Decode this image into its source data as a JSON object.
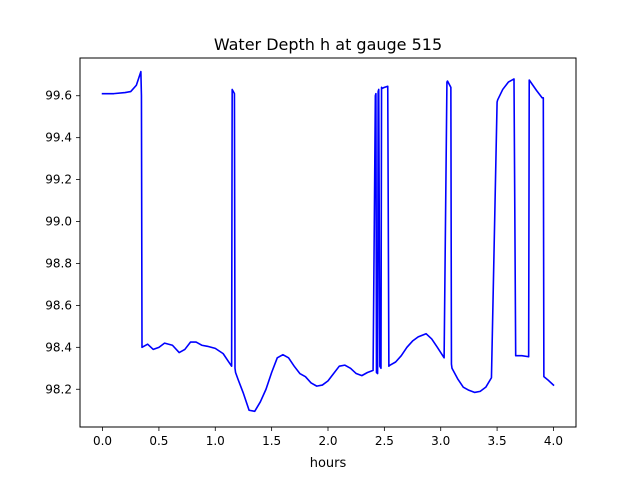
{
  "chart_data": {
    "type": "line",
    "title": "Water Depth h at gauge 515",
    "xlabel": "hours",
    "ylabel": "",
    "xlim": [
      -0.2,
      4.2
    ],
    "ylim": [
      98.02,
      99.78
    ],
    "xticks": [
      0.0,
      0.5,
      1.0,
      1.5,
      2.0,
      2.5,
      3.0,
      3.5,
      4.0
    ],
    "xtick_labels": [
      "0.0",
      "0.5",
      "1.0",
      "1.5",
      "2.0",
      "2.5",
      "3.0",
      "3.5",
      "4.0"
    ],
    "yticks": [
      98.2,
      98.4,
      98.6,
      98.8,
      99.0,
      99.2,
      99.4,
      99.6
    ],
    "ytick_labels": [
      "98.2",
      "98.4",
      "98.6",
      "98.8",
      "99.0",
      "99.2",
      "99.4",
      "99.6"
    ],
    "grid": false,
    "series": [
      {
        "color": "#0000ff",
        "x": [
          0.0,
          0.1,
          0.2,
          0.25,
          0.3,
          0.34,
          0.345,
          0.35,
          0.4,
          0.45,
          0.5,
          0.55,
          0.62,
          0.68,
          0.73,
          0.78,
          0.83,
          0.88,
          0.93,
          1.0,
          1.07,
          1.12,
          1.145,
          1.15,
          1.155,
          1.17,
          1.175,
          1.18,
          1.2,
          1.25,
          1.3,
          1.35,
          1.4,
          1.45,
          1.5,
          1.55,
          1.6,
          1.65,
          1.7,
          1.75,
          1.8,
          1.85,
          1.9,
          1.95,
          2.0,
          2.05,
          2.1,
          2.15,
          2.2,
          2.25,
          2.3,
          2.35,
          2.4,
          2.42,
          2.425,
          2.43,
          2.44,
          2.445,
          2.45,
          2.46,
          2.47,
          2.475,
          2.48,
          2.5,
          2.53,
          2.54,
          2.55,
          2.6,
          2.65,
          2.7,
          2.75,
          2.8,
          2.87,
          2.92,
          2.97,
          3.03,
          3.055,
          3.06,
          3.09,
          3.095,
          3.1,
          3.15,
          3.2,
          3.25,
          3.3,
          3.35,
          3.4,
          3.45,
          3.5,
          3.505,
          3.55,
          3.6,
          3.65,
          3.665,
          3.67,
          3.72,
          3.78,
          3.785,
          3.85,
          3.9,
          3.91,
          3.915,
          3.95,
          4.0
        ],
        "y": [
          99.61,
          99.61,
          99.615,
          99.62,
          99.65,
          99.715,
          99.6,
          98.4,
          98.415,
          98.39,
          98.4,
          98.42,
          98.41,
          98.375,
          98.39,
          98.425,
          98.425,
          98.41,
          98.405,
          98.395,
          98.37,
          98.33,
          98.31,
          99.63,
          99.625,
          99.61,
          98.3,
          98.28,
          98.25,
          98.18,
          98.1,
          98.095,
          98.14,
          98.2,
          98.28,
          98.35,
          98.365,
          98.35,
          98.31,
          98.275,
          98.26,
          98.23,
          98.215,
          98.22,
          98.24,
          98.275,
          98.31,
          98.315,
          98.3,
          98.275,
          98.265,
          98.28,
          98.29,
          99.6,
          99.61,
          98.28,
          98.275,
          99.62,
          99.63,
          98.31,
          98.3,
          99.64,
          99.635,
          99.64,
          99.645,
          98.31,
          98.315,
          98.33,
          98.36,
          98.4,
          98.43,
          98.45,
          98.465,
          98.44,
          98.4,
          98.35,
          99.665,
          99.67,
          99.64,
          98.32,
          98.3,
          98.25,
          98.21,
          98.195,
          98.185,
          98.19,
          98.21,
          98.255,
          99.57,
          99.58,
          99.63,
          99.665,
          99.68,
          98.36,
          98.36,
          98.36,
          98.355,
          99.675,
          99.625,
          99.59,
          99.59,
          98.26,
          98.245,
          98.22
        ]
      }
    ]
  }
}
